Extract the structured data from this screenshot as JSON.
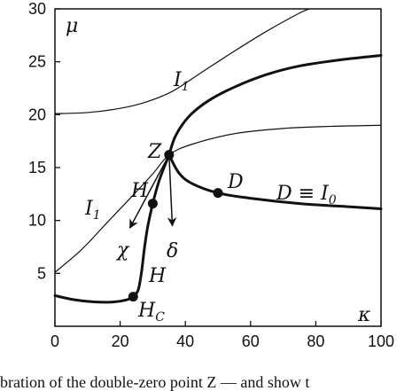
{
  "chart_data": {
    "type": "line",
    "xlabel": "κ",
    "ylabel": "μ",
    "xlim": [
      0,
      100
    ],
    "ylim": [
      0,
      30
    ],
    "x_ticks": [
      "0",
      "20",
      "40",
      "60",
      "80",
      "100"
    ],
    "y_ticks": [
      "5",
      "10",
      "15",
      "20",
      "25",
      "30"
    ],
    "grid": false,
    "series": [
      {
        "style": "thin",
        "points": [
          [
            0,
            20.1
          ],
          [
            10,
            20.2
          ],
          [
            20,
            20.6
          ],
          [
            28,
            21.2
          ],
          [
            36,
            22.2
          ],
          [
            45,
            24.0
          ],
          [
            55,
            26.0
          ],
          [
            65,
            27.9
          ],
          [
            75,
            29.6
          ],
          [
            78,
            30.0
          ]
        ]
      },
      {
        "style": "thin",
        "points": [
          [
            0,
            5.1
          ],
          [
            8,
            7.2
          ],
          [
            16,
            9.8
          ],
          [
            24,
            12.4
          ],
          [
            30,
            14.4
          ],
          [
            35,
            16.2
          ],
          [
            42,
            17.2
          ],
          [
            55,
            18.2
          ],
          [
            70,
            18.7
          ],
          [
            85,
            18.9
          ],
          [
            100,
            19.0
          ]
        ]
      },
      {
        "style": "thick",
        "points": [
          [
            35,
            16.2
          ],
          [
            37,
            18.0
          ],
          [
            41,
            19.8
          ],
          [
            47,
            21.3
          ],
          [
            55,
            22.6
          ],
          [
            65,
            23.8
          ],
          [
            75,
            24.6
          ],
          [
            88,
            25.2
          ],
          [
            100,
            25.6
          ]
        ]
      },
      {
        "style": "thick",
        "points": [
          [
            35,
            16.2
          ],
          [
            38,
            14.5
          ],
          [
            42,
            13.5
          ],
          [
            50,
            12.6
          ],
          [
            60,
            12.1
          ],
          [
            75,
            11.6
          ],
          [
            90,
            11.3
          ],
          [
            100,
            11.1
          ]
        ]
      },
      {
        "style": "thick",
        "points": [
          [
            0,
            2.9
          ],
          [
            6,
            2.5
          ],
          [
            12,
            2.3
          ],
          [
            18,
            2.3
          ],
          [
            22,
            2.5
          ],
          [
            24,
            2.8
          ],
          [
            25.5,
            3.4
          ],
          [
            26.5,
            5.0
          ],
          [
            27.5,
            7.5
          ],
          [
            28.5,
            9.5
          ],
          [
            30,
            11.6
          ],
          [
            32,
            13.8
          ],
          [
            35,
            16.2
          ]
        ]
      }
    ],
    "points": [
      {
        "label": "Z",
        "x": 35,
        "y": 16.2
      },
      {
        "label": "H",
        "x": 30,
        "y": 11.6
      },
      {
        "label": "D",
        "x": 50,
        "y": 12.6
      },
      {
        "label": "H_C",
        "x": 24,
        "y": 2.8
      }
    ],
    "arrows": [
      {
        "label": "χ",
        "from": [
          35,
          16.2
        ],
        "to": [
          23,
          9.3
        ]
      },
      {
        "label": "δ",
        "from": [
          35,
          16.2
        ],
        "to": [
          36,
          9.5
        ]
      }
    ],
    "annotations": {
      "Z": "Z",
      "H": "H",
      "D": "D",
      "H_C": "H",
      "H_C_sub": "C",
      "chi": "χ",
      "delta": "δ",
      "I1_top": "I",
      "I1_top_sub": "1",
      "I1_left": "I",
      "I1_left_sub": "1",
      "calH": "H",
      "D_label": "D ≡ I",
      "D_label_sub": "0"
    }
  },
  "caption_fragment": "bration of the double-zero point Z — and show t"
}
